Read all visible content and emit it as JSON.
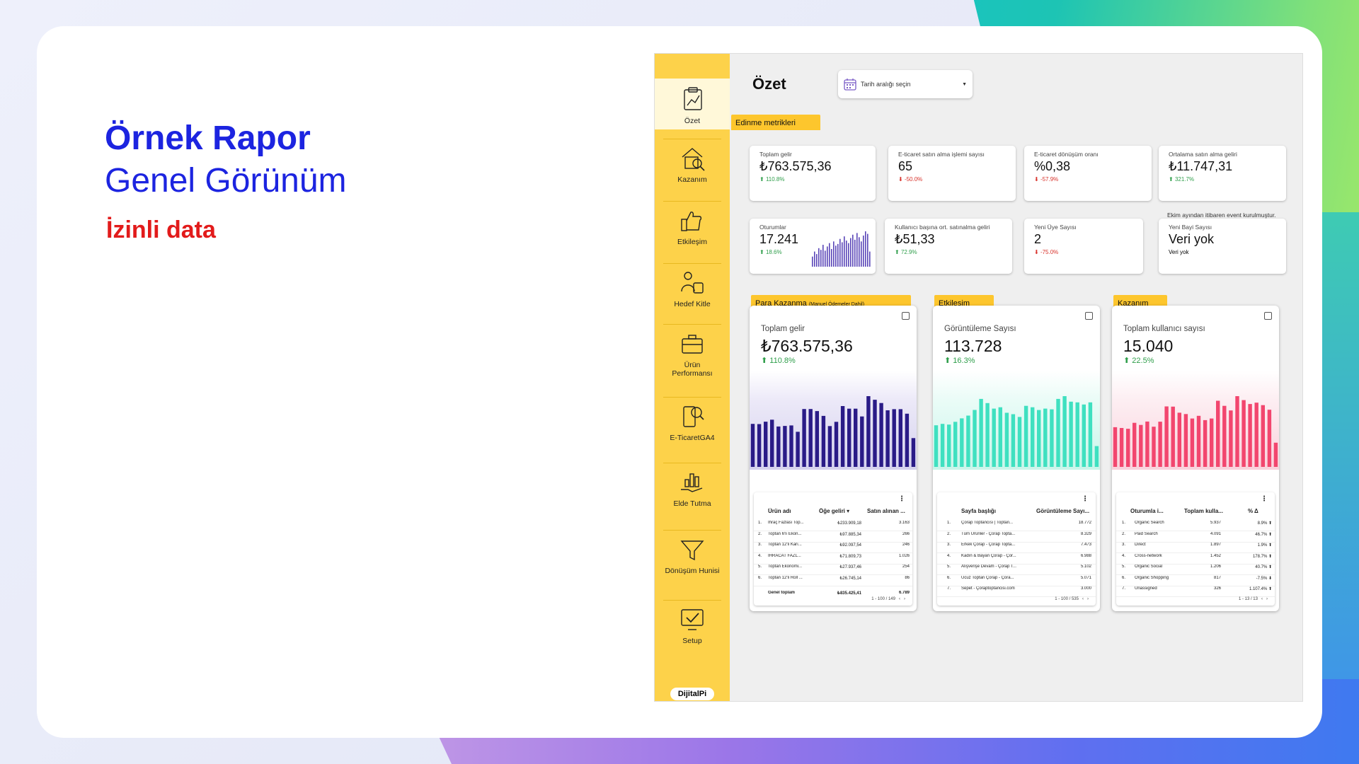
{
  "slide": {
    "title": "Örnek Rapor",
    "subtitle": "Genel Görünüm",
    "tag": "İzinli data"
  },
  "colors": {
    "accent_blue": "#1c24e0",
    "accent_red": "#e21b1b",
    "sidebar_yellow": "#fdd24a",
    "tab_yellow": "#fdc62d",
    "bar_purple": "#2a1b87",
    "bar_teal": "#3fe0c0",
    "bar_pink": "#f2466e"
  },
  "sidebar": {
    "items": [
      {
        "label": "Özet",
        "icon": "clipboard-chart-icon"
      },
      {
        "label": "Kazanım",
        "icon": "house-search-icon"
      },
      {
        "label": "Etkileşim",
        "icon": "thumbs-up-hand-icon"
      },
      {
        "label": "Hedef Kitle",
        "icon": "audience-icon"
      },
      {
        "label": "Ürün Performansı",
        "icon": "briefcase-icon"
      },
      {
        "label": "E-TicaretGA4",
        "icon": "phone-search-icon"
      },
      {
        "label": "Elde Tutma",
        "icon": "hand-chart-icon"
      },
      {
        "label": "Dönüşüm Hunisi",
        "icon": "funnel-icon"
      },
      {
        "label": "Setup",
        "icon": "monitor-check-icon"
      }
    ],
    "brand": "DijitalPi"
  },
  "header": {
    "title": "Özet",
    "date_placeholder": "Tarih aralığı seçin"
  },
  "acquisition": {
    "tab": "Edinme metrikleri",
    "cards": [
      {
        "label": "Toplam gelir",
        "value": "₺763.575,36",
        "change": "110.8%",
        "dir": "up"
      },
      {
        "label": "E-ticaret satın alma işlemi sayısı",
        "value": "65",
        "change": "-50.0%",
        "dir": "down"
      },
      {
        "label": "E-ticaret dönüşüm oranı",
        "value": "%0,38",
        "change": "-57.9%",
        "dir": "down"
      },
      {
        "label": "Ortalama satın alma geliri",
        "value": "₺11.747,31",
        "change": "321.7%",
        "dir": "up"
      },
      {
        "label": "Oturumlar",
        "value": "17.241",
        "change": "18.6%",
        "dir": "up"
      },
      {
        "label": "Kullanıcı başına ort. satınalma geliri",
        "value": "₺51,33",
        "change": "72.9%",
        "dir": "up"
      },
      {
        "label": "Yeni Üye Sayısı",
        "value": "2",
        "change": "-75.0%",
        "dir": "down"
      },
      {
        "label": "Yeni Bayi Sayısı",
        "value": "Veri yok",
        "change": "Veri yok",
        "dir": "none"
      }
    ],
    "note": "Ekim ayından itibaren event kurulmuştur."
  },
  "sessions_sparkline": {
    "values": [
      12,
      18,
      15,
      22,
      20,
      26,
      19,
      24,
      28,
      21,
      30,
      25,
      27,
      33,
      29,
      36,
      31,
      28,
      34,
      38,
      32,
      40,
      35,
      30,
      37,
      42,
      39,
      18
    ]
  },
  "panels": [
    {
      "tab": "Para Kazanma",
      "tab_note": "(Manuel Ödemeler Dahil)",
      "label": "Toplam gelir",
      "value": "₺763.575,36",
      "change": "110.8%",
      "table": {
        "headers": [
          "Ürün adı",
          "Öğe geliri ▾",
          "Satın alınan ..."
        ],
        "rows": [
          [
            "1.",
            "İhraç Fazlası Top...",
            "₺233.909,18",
            "3.163"
          ],
          [
            "2.",
            "Toptan 6'lı Ekon...",
            "₺97.885,34",
            "266"
          ],
          [
            "3.",
            "Toptan 12'li Karı...",
            "₺92.097,54",
            "246"
          ],
          [
            "4.",
            "İHRACAT FAZL...",
            "₺71.809,73",
            "1.026"
          ],
          [
            "5.",
            "Toptan Ekonomi...",
            "₺27.937,46",
            "254"
          ],
          [
            "6.",
            "Toptan 12'li Roll ...",
            "₺26.745,14",
            "86"
          ]
        ],
        "total": [
          "Genel toplam",
          "₺835.425,41",
          "6.789"
        ],
        "pager": "1 - 100 / 149"
      }
    },
    {
      "tab": "Etkileşim",
      "tab_note": "",
      "label": "Görüntüleme Sayısı",
      "value": "113.728",
      "change": "16.3%",
      "table": {
        "headers": [
          "Sayfa başlığı",
          "Görüntüleme Sayı..."
        ],
        "rows": [
          [
            "1.",
            "Çorap Toptancısı | Toptan...",
            "18.772"
          ],
          [
            "2.",
            "Tüm Ürünler - Çorap Topta...",
            "8.329"
          ],
          [
            "3.",
            "Erkek Çorap - Çorap Topta...",
            "7.473"
          ],
          [
            "4.",
            "Kadın & Bayan Çorap - Çor...",
            "6.988"
          ],
          [
            "5.",
            "Alışverişe Devam - Çorap T...",
            "5.102"
          ],
          [
            "6.",
            "Ucuz Toptan Çorap - Çora...",
            "5.071"
          ],
          [
            "7.",
            "Sepet - Çoraptoptancisi.com",
            "3.000"
          ]
        ],
        "pager": "1 - 100 / 535"
      }
    },
    {
      "tab": "Kazanım",
      "tab_note": "",
      "label": "Toplam kullanıcı sayısı",
      "value": "15.040",
      "change": "22.5%",
      "table": {
        "headers": [
          "Oturumla i...",
          "Toplam kulla...",
          "% Δ"
        ],
        "rows": [
          [
            "1.",
            "Organic Search",
            "5.937",
            "8.9% ⬆"
          ],
          [
            "2.",
            "Paid Search",
            "4.091",
            "46.7% ⬆"
          ],
          [
            "3.",
            "Direct",
            "1.897",
            "1.9% ⬆"
          ],
          [
            "4.",
            "Cross-network",
            "1.452",
            "178.7% ⬆"
          ],
          [
            "5.",
            "Organic Social",
            "1.206",
            "40.7% ⬆"
          ],
          [
            "6.",
            "Organic Shopping",
            "817",
            "-7.5% ⬇"
          ],
          [
            "7.",
            "Unassigned",
            "326",
            "1.107.4% ⬆"
          ]
        ],
        "pager": "1 - 13 / 13"
      }
    }
  ],
  "chart_data": [
    {
      "type": "bar",
      "name": "Toplam gelir",
      "values": [
        7677,
        7644,
        8062,
        8416,
        7210,
        7316,
        7400,
        6260,
        10328,
        10328,
        9963,
        9100,
        7290,
        8040,
        10860,
        10390,
        10390,
        9000,
        12626,
        11980,
        11397,
        10097,
        10302,
        10302,
        9500,
        5140
      ]
    },
    {
      "type": "bar",
      "name": "Görüntüleme Sayısı",
      "values": [
        3000,
        3100,
        3050,
        3250,
        3500,
        3700,
        4108,
        4900,
        4600,
        4200,
        4300,
        3900,
        3800,
        3600,
        4400,
        4300,
        4100,
        4200,
        4150,
        4900,
        5100,
        4700,
        4650,
        4500,
        4650,
        1500
      ]
    },
    {
      "type": "bar",
      "name": "Toplam kullanıcı sayısı",
      "values": [
        492,
        482,
        473,
        546,
        520,
        562,
        498,
        560,
        750,
        747,
        672,
        655,
        600,
        633,
        580,
        600,
        820,
        757,
        700,
        877,
        828,
        780,
        796,
        766,
        709,
        300
      ]
    }
  ]
}
